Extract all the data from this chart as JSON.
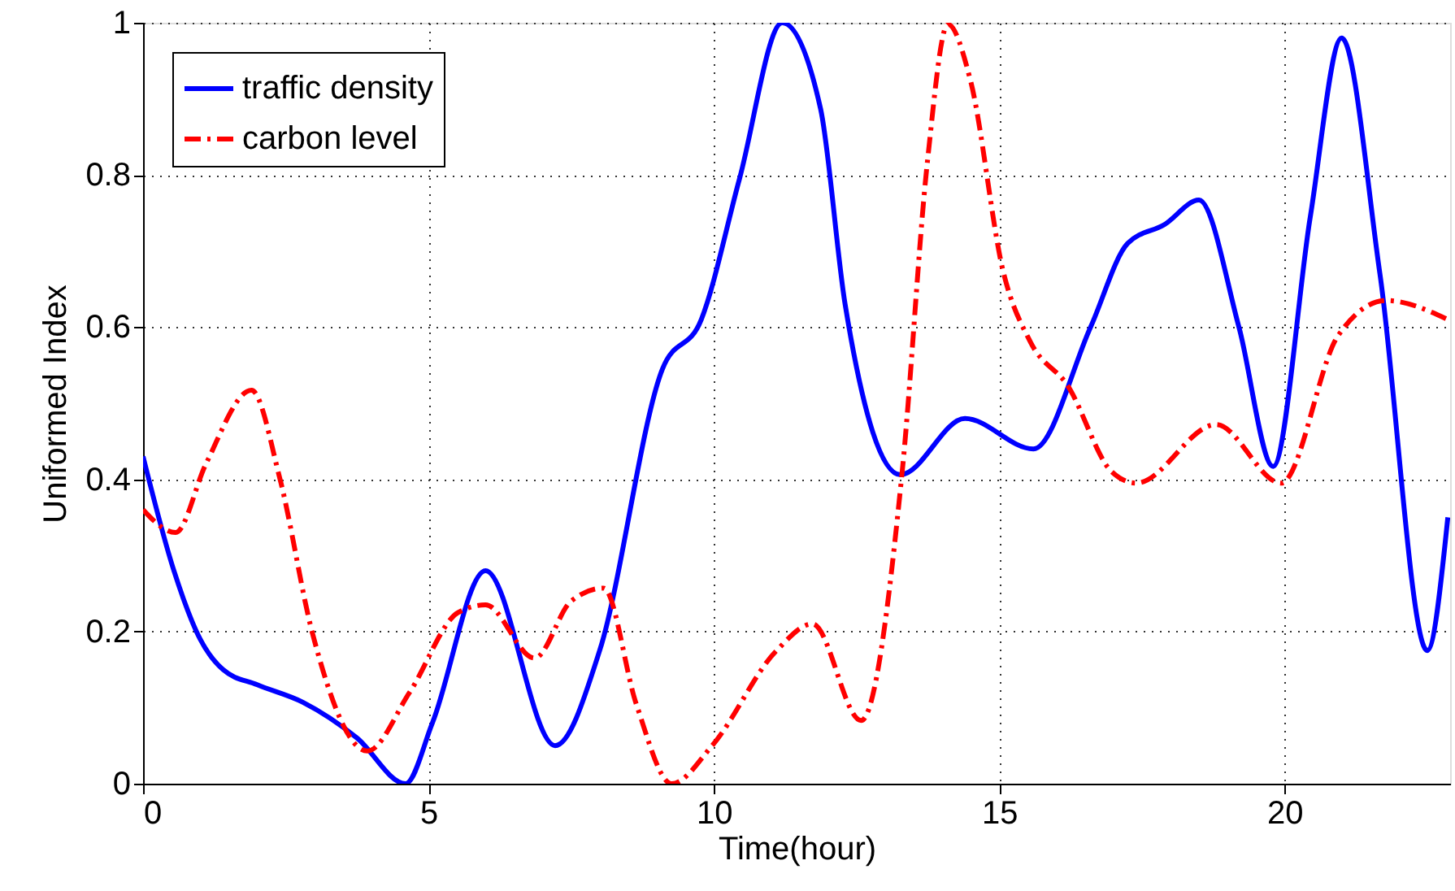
{
  "chart_data": {
    "type": "line",
    "xlabel": "Time(hour)",
    "ylabel": "Uniformed Index",
    "xlim": [
      0,
      22.9
    ],
    "xticks": [
      0,
      5,
      10,
      15,
      20
    ],
    "ylim": [
      0,
      1
    ],
    "yticks": [
      0,
      0.2,
      0.4,
      0.6,
      0.8,
      1
    ],
    "grid": true,
    "legend": "top left",
    "marker": "none",
    "series": [
      {
        "name": "traffic density",
        "color": "#0000ff",
        "line_style": "solid",
        "x": [
          0,
          0.54,
          1.0,
          1.4,
          2.0,
          2.8,
          3.75,
          4.6,
          5.07,
          6.0,
          7.22,
          8.0,
          9.1,
          9.78,
          10.45,
          11.2,
          11.87,
          12.3,
          13.27,
          14.4,
          15.6,
          16.6,
          17.25,
          17.9,
          18.5,
          19.2,
          19.8,
          20.45,
          21.0,
          21.67,
          22.5,
          22.86
        ],
        "values": [
          0.43,
          0.28,
          0.19,
          0.15,
          0.13,
          0.107,
          0.06,
          0.0,
          0.08,
          0.28,
          0.05,
          0.175,
          0.545,
          0.61,
          0.795,
          1.0,
          0.887,
          0.63,
          0.406,
          0.48,
          0.44,
          0.6,
          0.71,
          0.735,
          0.767,
          0.6,
          0.417,
          0.745,
          0.98,
          0.67,
          0.175,
          0.35
        ]
      },
      {
        "name": "carbon level",
        "color": "#ff0000",
        "line_style": "dashed",
        "x": [
          0,
          0.57,
          1.1,
          1.9,
          2.4,
          2.97,
          3.93,
          4.67,
          5.52,
          6.0,
          6.86,
          7.5,
          8.07,
          8.64,
          9.26,
          9.97,
          11.1,
          11.73,
          12.58,
          13.3,
          13.74,
          14.1,
          14.5,
          15.07,
          15.55,
          16.2,
          16.97,
          17.4,
          18.8,
          19.94,
          20.93,
          21.78,
          22.86
        ],
        "values": [
          0.36,
          0.33,
          0.42,
          0.517,
          0.4,
          0.197,
          0.043,
          0.12,
          0.225,
          0.235,
          0.165,
          0.24,
          0.257,
          0.105,
          0.0,
          0.05,
          0.175,
          0.21,
          0.083,
          0.41,
          0.816,
          0.998,
          0.923,
          0.673,
          0.58,
          0.523,
          0.41,
          0.395,
          0.472,
          0.395,
          0.588,
          0.635,
          0.61
        ]
      }
    ]
  }
}
